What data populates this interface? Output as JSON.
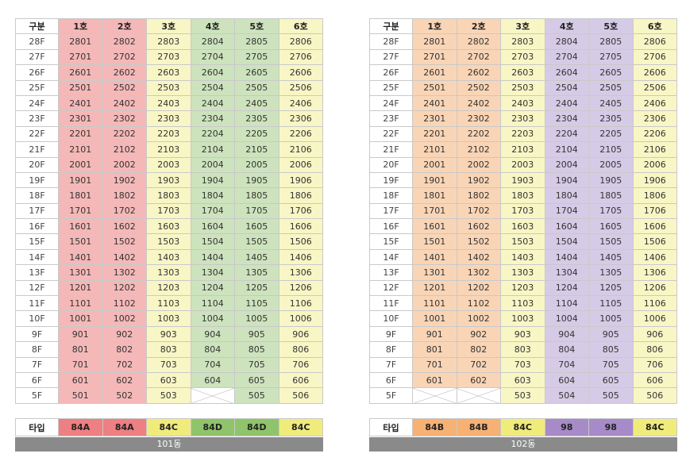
{
  "header_label": "구분",
  "type_label": "타입",
  "floors": [
    "28F",
    "27F",
    "26F",
    "25F",
    "24F",
    "23F",
    "22F",
    "21F",
    "20F",
    "19F",
    "18F",
    "17F",
    "16F",
    "15F",
    "14F",
    "13F",
    "12F",
    "11F",
    "10F",
    "9F",
    "8F",
    "7F",
    "6F",
    "5F"
  ],
  "buildings": [
    {
      "name": "101동",
      "columns": [
        {
          "label": "1호",
          "type": "84A",
          "color": "#f5b8b8",
          "type_color": "#ee7f82"
        },
        {
          "label": "2호",
          "type": "84A",
          "color": "#f5b8b8",
          "type_color": "#ee7f82"
        },
        {
          "label": "3호",
          "type": "84C",
          "color": "#f9f6c5",
          "type_color": "#f0ec7c"
        },
        {
          "label": "4호",
          "type": "84D",
          "color": "#cde3bd",
          "type_color": "#8fc46a"
        },
        {
          "label": "5호",
          "type": "84D",
          "color": "#cde3bd",
          "type_color": "#8fc46a"
        },
        {
          "label": "6호",
          "type": "84C",
          "color": "#f9f6c5",
          "type_color": "#f0ec7c"
        }
      ],
      "empty_units": [
        "504"
      ]
    },
    {
      "name": "102동",
      "columns": [
        {
          "label": "1호",
          "type": "84B",
          "color": "#f9d5b6",
          "type_color": "#f6b173"
        },
        {
          "label": "2호",
          "type": "84B",
          "color": "#f9d5b6",
          "type_color": "#f6b173"
        },
        {
          "label": "3호",
          "type": "84C",
          "color": "#f9f6c5",
          "type_color": "#f0ec7c"
        },
        {
          "label": "4호",
          "type": "98",
          "color": "#d6cbe6",
          "type_color": "#a68bc8"
        },
        {
          "label": "5호",
          "type": "98",
          "color": "#d6cbe6",
          "type_color": "#a68bc8"
        },
        {
          "label": "6호",
          "type": "84C",
          "color": "#f9f6c5",
          "type_color": "#f0ec7c"
        }
      ],
      "empty_units": [
        "501",
        "502"
      ]
    }
  ]
}
